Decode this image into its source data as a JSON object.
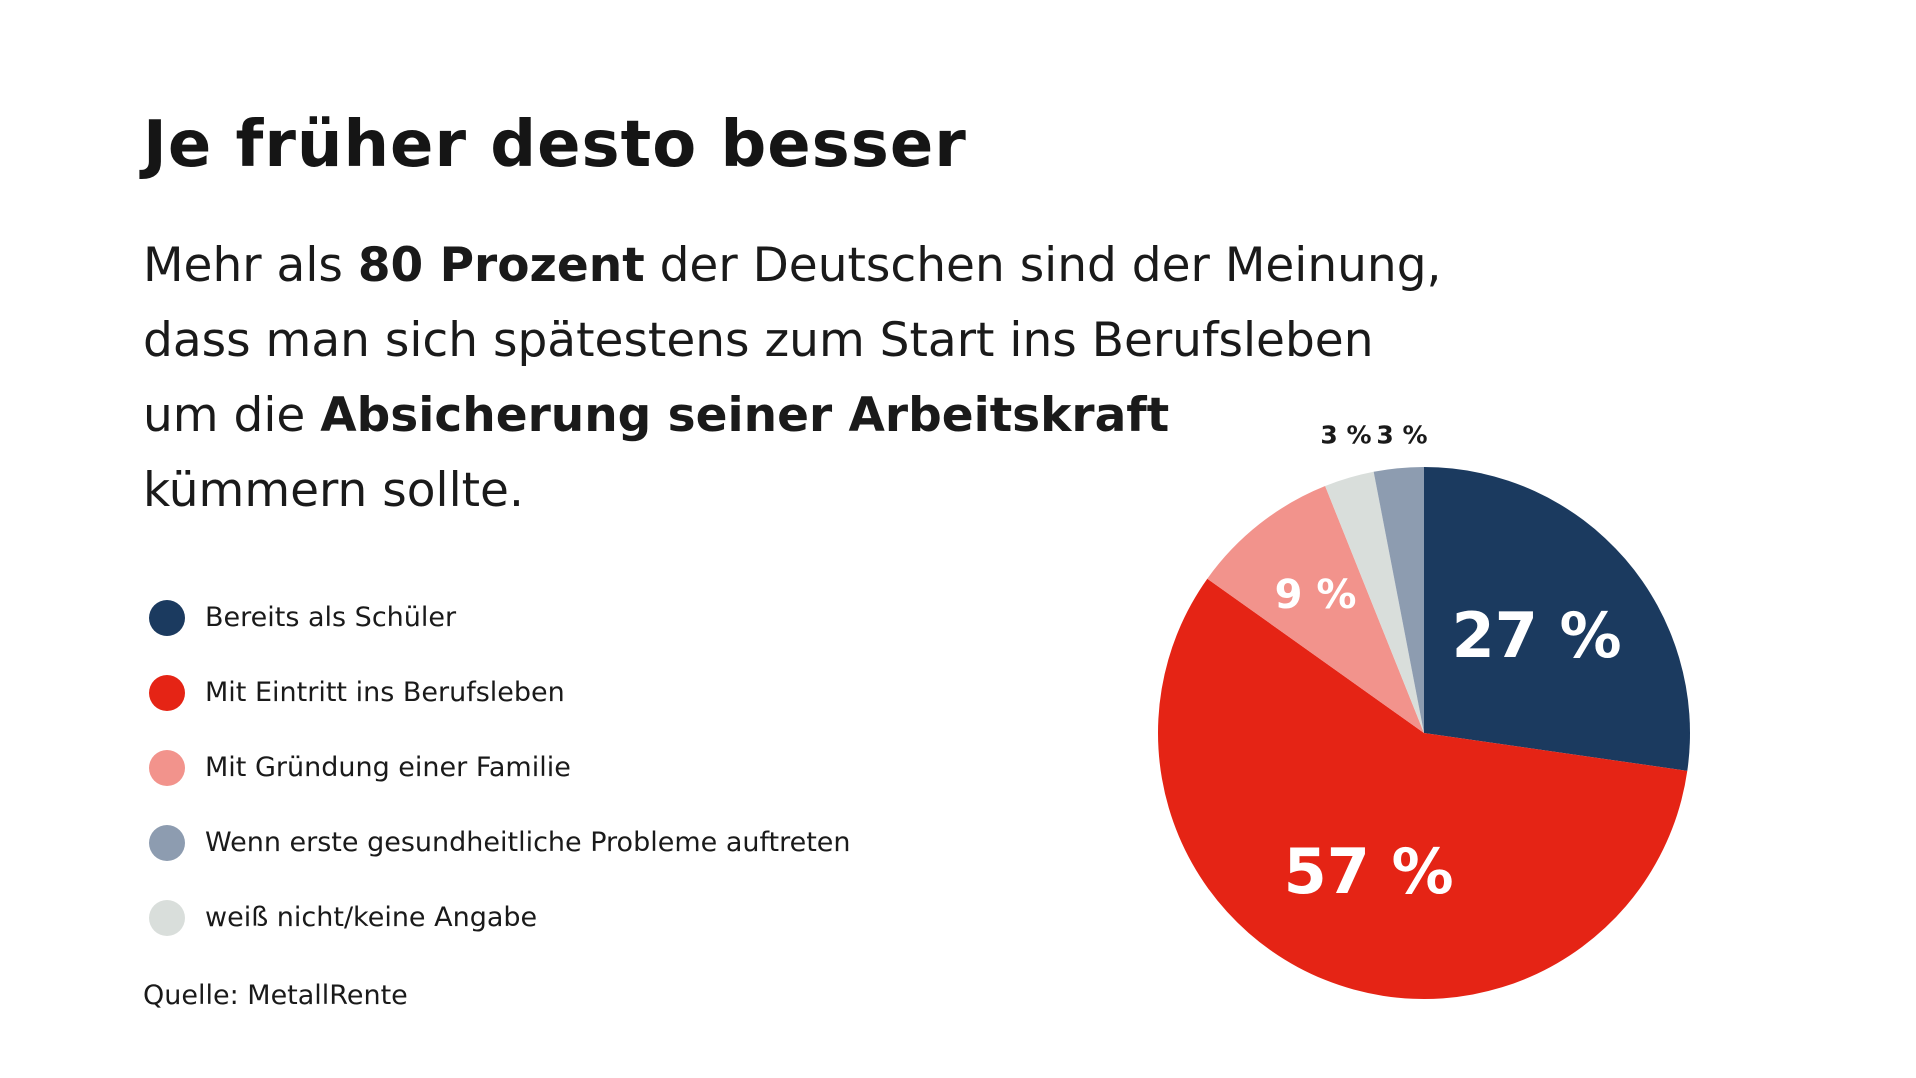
{
  "title": "Je früher desto besser",
  "subtitle": {
    "line1_pre": "Mehr als ",
    "line1_bold": "80 Prozent",
    "line1_post": " der Deutschen sind der Meinung,",
    "line2": "dass man sich spätestens zum Start ins Berufsleben",
    "line3_pre": "um die ",
    "line3_bold": "Absicherung seiner Arbeitskraft",
    "line4": "kümmern sollte."
  },
  "source": "Quelle: MetallRente",
  "chart_data": {
    "type": "pie",
    "start_angle_deg": 0,
    "direction": "clockwise",
    "slices": [
      {
        "label": "Bereits als Schüler",
        "value": 27,
        "display": "27 %",
        "color": "#1b3a5f",
        "label_color": "#ffffff",
        "label_size": "large"
      },
      {
        "label": "Mit Eintritt ins Berufsleben",
        "value": 57,
        "display": "57 %",
        "color": "#e52415",
        "label_color": "#ffffff",
        "label_size": "large"
      },
      {
        "label": "Mit Gründung einer Familie",
        "value": 9,
        "display": "9 %",
        "color": "#f2938c",
        "label_color": "#ffffff",
        "label_size": "medium"
      },
      {
        "label": "weiß nicht/keine Angabe",
        "value": 3,
        "display": "3 %",
        "color": "#d9dedb",
        "label_color": "#1a1a1a",
        "label_size": "small",
        "label_outside": true
      },
      {
        "label": "Wenn erste gesundheitliche Probleme auftreten",
        "value": 3,
        "display": "3 %",
        "color": "#8d9cb0",
        "label_color": "#1a1a1a",
        "label_size": "small",
        "label_outside": true
      }
    ],
    "legend": [
      {
        "label": "Bereits als Schüler",
        "color": "#1b3a5f"
      },
      {
        "label": "Mit Eintritt ins Berufsleben",
        "color": "#e52415"
      },
      {
        "label": "Mit Gründung einer Familie",
        "color": "#f2938c"
      },
      {
        "label": "Wenn erste gesundheitliche Probleme auftreten",
        "color": "#8d9cb0"
      },
      {
        "label": "weiß nicht/keine Angabe",
        "color": "#d9dedb"
      }
    ],
    "legend_position": "left"
  }
}
